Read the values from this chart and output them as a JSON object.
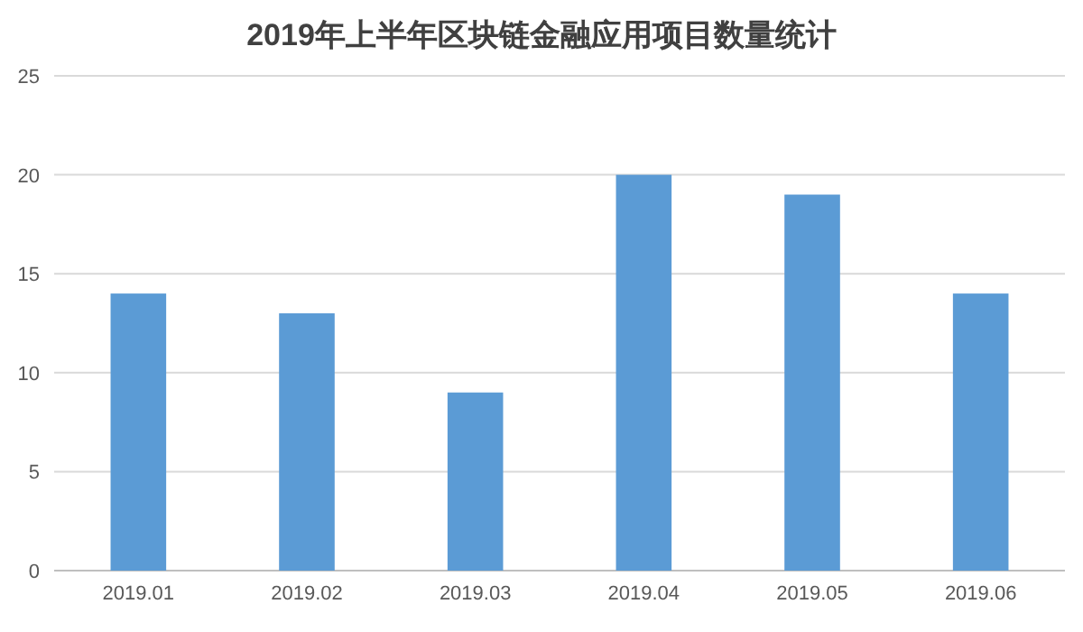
{
  "chart_data": {
    "type": "bar",
    "title": "2019年上半年区块链金融应用项目数量统计",
    "categories": [
      "2019.01",
      "2019.02",
      "2019.03",
      "2019.04",
      "2019.05",
      "2019.06"
    ],
    "values": [
      14,
      13,
      9,
      20,
      19,
      14
    ],
    "color": "#5b9bd5",
    "ylim": [
      0,
      25
    ],
    "yticks": [
      0,
      5,
      10,
      15,
      20,
      25
    ],
    "grid": "y"
  }
}
